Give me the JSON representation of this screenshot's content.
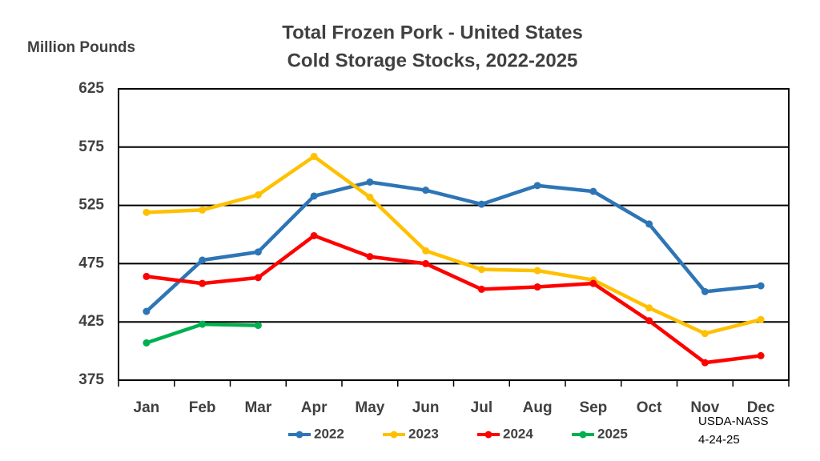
{
  "chart_data": {
    "type": "line",
    "title": "Total Frozen Pork - United States",
    "subtitle": "Cold Storage Stocks, 2022-2025",
    "y_label": "Million Pounds",
    "annotations": [
      "USDA-NASS",
      "4-24-25"
    ],
    "categories": [
      "Jan",
      "Feb",
      "Mar",
      "Apr",
      "May",
      "Jun",
      "Jul",
      "Aug",
      "Sep",
      "Oct",
      "Nov",
      "Dec"
    ],
    "series": [
      {
        "name": "2022",
        "color": "#2e75b6",
        "values": [
          434,
          478,
          485,
          533,
          545,
          538,
          526,
          542,
          537,
          509,
          451,
          456
        ]
      },
      {
        "name": "2023",
        "color": "#ffc000",
        "values": [
          519,
          521,
          534,
          567,
          532,
          486,
          470,
          469,
          461,
          437,
          415,
          427
        ]
      },
      {
        "name": "2024",
        "color": "#ff0000",
        "values": [
          464,
          458,
          463,
          499,
          481,
          475,
          453,
          455,
          458,
          426,
          390,
          396
        ]
      },
      {
        "name": "2025",
        "color": "#00b050",
        "values": [
          407,
          423,
          422,
          null,
          null,
          null,
          null,
          null,
          null,
          null,
          null,
          null
        ]
      }
    ],
    "ylim": [
      375,
      625
    ],
    "yticks": [
      375,
      425,
      475,
      525,
      575,
      625
    ],
    "grid": true,
    "legend": "bottom"
  }
}
